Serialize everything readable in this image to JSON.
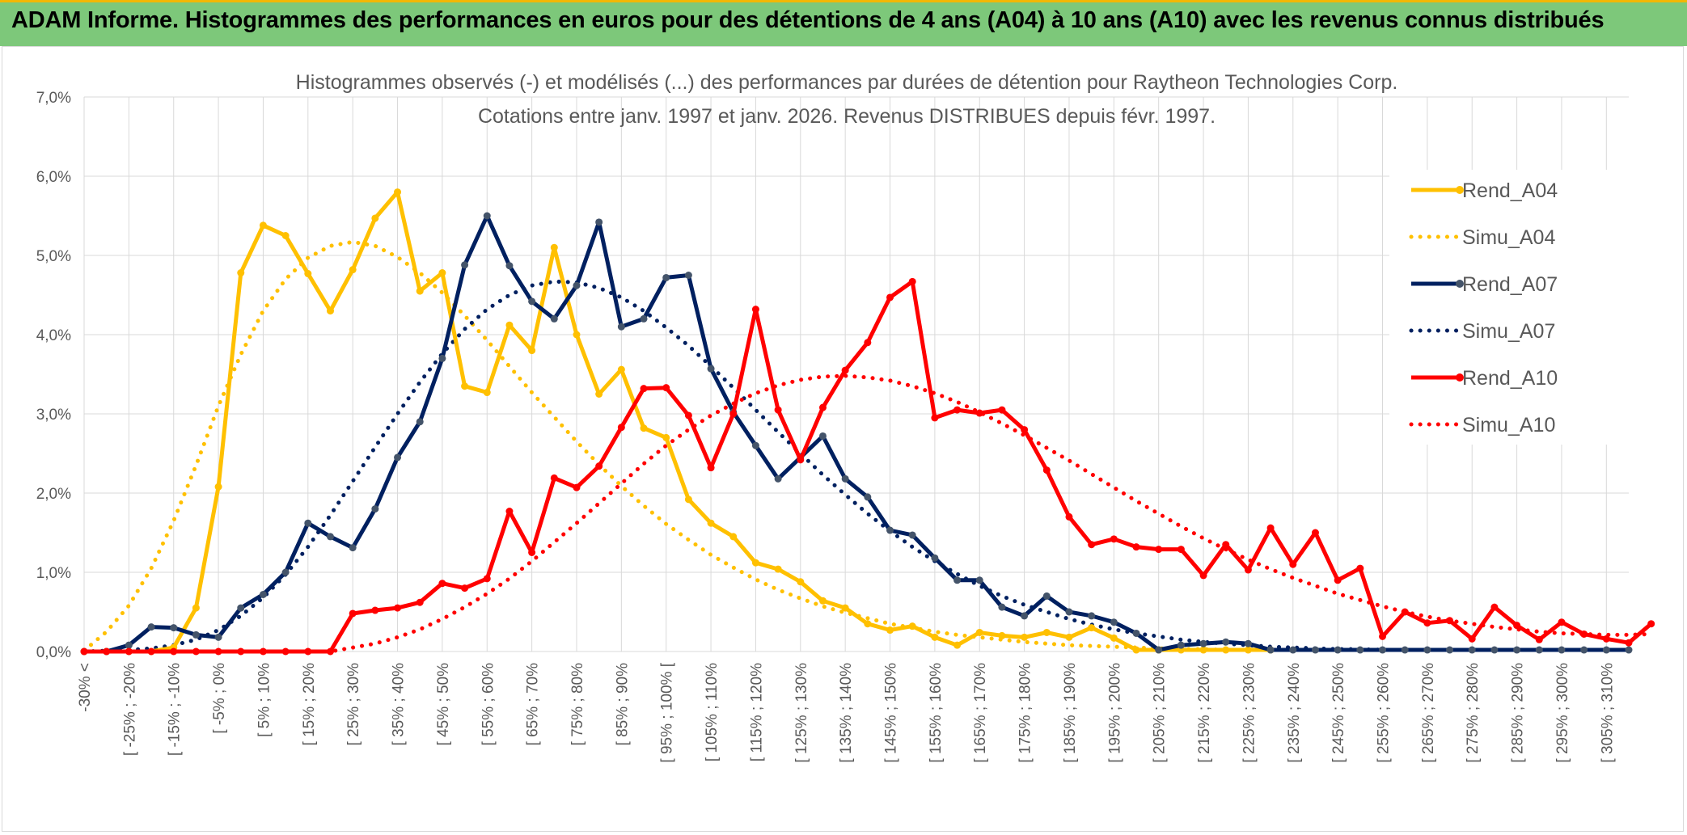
{
  "banner": {
    "title": "ADAM Informe. Histogrammes des performances en euros pour des détentions de 4 ans (A04) à 10 ans (A10) avec les revenus connus distribués"
  },
  "colors": {
    "banner_bg": "#7dc87a",
    "banner_accent": "#f2b705",
    "rend_a04": "#ffc000",
    "rend_a07": "#002060",
    "rend_a10": "#ff0000",
    "marker_a07": "#44546a",
    "grid": "#d9d9d9"
  },
  "chart_data": {
    "type": "line",
    "title_lines": [
      "Histogrammes observés (-) et modélisés (...) des performances par durées de détention pour Raytheon Technologies Corp.",
      "Cotations entre janv. 1997 et janv. 2026. Revenus DISTRIBUES depuis févr. 1997."
    ],
    "ylim": [
      0,
      7
    ],
    "y_ticks": [
      "0,0%",
      "1,0%",
      "2,0%",
      "3,0%",
      "4,0%",
      "5,0%",
      "6,0%",
      "7,0%"
    ],
    "x_tick_labels": [
      "-30% <",
      "[ -25% ; -20%",
      "[ -15% ; -10%",
      "[ -5% ; 0%",
      "[ 5% ; 10%",
      "[ 15% ; 20%",
      "[ 25% ; 30%",
      "[ 35% ; 40%",
      "[ 45% ; 50%",
      "[ 55% ; 60%",
      "[ 65% ; 70%",
      "[ 75% ; 80%",
      "[ 85% ; 90%",
      "[ 95% ; 100% [",
      "[ 105% ; 110%",
      "[ 115% ; 120%",
      "[ 125% ; 130%",
      "[ 135% ; 140%",
      "[ 145% ; 150%",
      "[ 155% ; 160%",
      "[ 165% ; 170%",
      "[ 175% ; 180%",
      "[ 185% ; 190%",
      "[ 195% ; 200%",
      "[ 205% ; 210%",
      "[ 215% ; 220%",
      "[ 225% ; 230%",
      "[ 235% ; 240%",
      "[ 245% ; 250%",
      "[ 255% ; 260%",
      "[ 265% ; 270%",
      "[ 275% ; 280%",
      "[ 285% ; 290%",
      "[ 295% ; 300%",
      "[ 305% ; 310%"
    ],
    "legend_position": "right",
    "series": [
      {
        "name": "Rend_A04",
        "style": "solid",
        "color": "#ffc000",
        "values": [
          0,
          0,
          0,
          0,
          0.05,
          0.55,
          2.08,
          4.78,
          5.38,
          5.25,
          4.77,
          4.3,
          4.82,
          5.47,
          5.8,
          4.55,
          4.78,
          3.35,
          3.27,
          4.12,
          3.8,
          5.1,
          4.0,
          3.25,
          3.56,
          2.82,
          2.7,
          1.92,
          1.62,
          1.45,
          1.12,
          1.04,
          0.88,
          0.64,
          0.55,
          0.35,
          0.27,
          0.32,
          0.18,
          0.08,
          0.24,
          0.2,
          0.18,
          0.24,
          0.18,
          0.3,
          0.17,
          0.02,
          0.02,
          0.02,
          0.02,
          0.02,
          0.02,
          0.02
        ]
      },
      {
        "name": "Simu_A04",
        "style": "dotted",
        "color": "#ffc000",
        "values": [
          0.01,
          0.25,
          0.58,
          1.05,
          1.65,
          2.35,
          3.1,
          3.75,
          4.3,
          4.7,
          4.97,
          5.12,
          5.17,
          5.12,
          4.98,
          4.78,
          4.53,
          4.24,
          3.93,
          3.6,
          3.27,
          2.96,
          2.65,
          2.36,
          2.09,
          1.84,
          1.61,
          1.41,
          1.22,
          1.06,
          0.91,
          0.78,
          0.67,
          0.57,
          0.49,
          0.42,
          0.35,
          0.3,
          0.25,
          0.21,
          0.18,
          0.15,
          0.12,
          0.1,
          0.08,
          0.07,
          0.06,
          0.05,
          0.04,
          0.03,
          0.03,
          0.02,
          0.02,
          0.02
        ]
      },
      {
        "name": "Rend_A07",
        "style": "solid",
        "color": "#002060",
        "values": [
          0,
          0,
          0.08,
          0.31,
          0.3,
          0.21,
          0.18,
          0.55,
          0.72,
          1.0,
          1.62,
          1.45,
          1.31,
          1.8,
          2.45,
          2.9,
          3.7,
          4.88,
          5.5,
          4.87,
          4.42,
          4.2,
          4.62,
          5.42,
          4.1,
          4.2,
          4.72,
          4.75,
          3.57,
          3.02,
          2.6,
          2.18,
          2.45,
          2.72,
          2.18,
          1.95,
          1.53,
          1.47,
          1.18,
          0.9,
          0.9,
          0.56,
          0.45,
          0.7,
          0.5,
          0.45,
          0.37,
          0.23,
          0.02,
          0.08,
          0.1,
          0.12,
          0.1,
          0.02,
          0.02,
          0.02,
          0.02,
          0.02,
          0.02,
          0.02,
          0.02,
          0.02,
          0.02,
          0.02,
          0.02,
          0.02,
          0.02,
          0.02,
          0.02,
          0.02
        ]
      },
      {
        "name": "Simu_A07",
        "style": "dotted",
        "color": "#002060",
        "values": [
          0,
          0.01,
          0.02,
          0.04,
          0.08,
          0.15,
          0.27,
          0.45,
          0.68,
          0.97,
          1.32,
          1.72,
          2.15,
          2.58,
          3.0,
          3.4,
          3.76,
          4.07,
          4.32,
          4.5,
          4.62,
          4.67,
          4.66,
          4.59,
          4.47,
          4.3,
          4.09,
          3.86,
          3.6,
          3.33,
          3.05,
          2.77,
          2.5,
          2.23,
          1.98,
          1.74,
          1.52,
          1.32,
          1.14,
          0.98,
          0.83,
          0.7,
          0.59,
          0.5,
          0.41,
          0.34,
          0.28,
          0.23,
          0.19,
          0.15,
          0.12,
          0.1,
          0.08,
          0.06,
          0.05,
          0.04,
          0.03,
          0.03,
          0.02,
          0.02,
          0.02,
          0.02,
          0.02,
          0.02,
          0.02,
          0.02,
          0.02,
          0.02,
          0.02,
          0.02
        ]
      },
      {
        "name": "Rend_A10",
        "style": "solid",
        "color": "#ff0000",
        "values": [
          0,
          0,
          0,
          0,
          0,
          0,
          0,
          0,
          0,
          0,
          0,
          0,
          0.48,
          0.52,
          0.55,
          0.62,
          0.86,
          0.8,
          0.92,
          1.77,
          1.25,
          2.19,
          2.07,
          2.34,
          2.83,
          3.32,
          3.33,
          2.98,
          2.32,
          3.0,
          4.32,
          3.05,
          2.42,
          3.08,
          3.55,
          3.9,
          4.47,
          4.67,
          2.95,
          3.05,
          3.01,
          3.05,
          2.8,
          2.29,
          1.7,
          1.35,
          1.42,
          1.32,
          1.29,
          1.29,
          0.96,
          1.35,
          1.03,
          1.56,
          1.1,
          1.5,
          0.9,
          1.05,
          0.19,
          0.5,
          0.36,
          0.39,
          0.16,
          0.56,
          0.33,
          0.15,
          0.37,
          0.22,
          0.16,
          0.11,
          0.35
        ]
      },
      {
        "name": "Simu_A10",
        "style": "dotted",
        "color": "#ff0000",
        "values": [
          0,
          0,
          0,
          0,
          0,
          0,
          0,
          0,
          0,
          0,
          0,
          0,
          0.05,
          0.1,
          0.18,
          0.28,
          0.41,
          0.56,
          0.73,
          0.92,
          1.14,
          1.38,
          1.62,
          1.87,
          2.12,
          2.37,
          2.6,
          2.8,
          2.98,
          3.13,
          3.26,
          3.36,
          3.43,
          3.47,
          3.48,
          3.46,
          3.42,
          3.35,
          3.26,
          3.15,
          3.02,
          2.88,
          2.73,
          2.57,
          2.41,
          2.24,
          2.07,
          1.9,
          1.74,
          1.58,
          1.43,
          1.29,
          1.16,
          1.04,
          0.93,
          0.83,
          0.73,
          0.65,
          0.57,
          0.5,
          0.44,
          0.39,
          0.35,
          0.31,
          0.28,
          0.25,
          0.23,
          0.22,
          0.21,
          0.21,
          0.22
        ]
      }
    ]
  }
}
